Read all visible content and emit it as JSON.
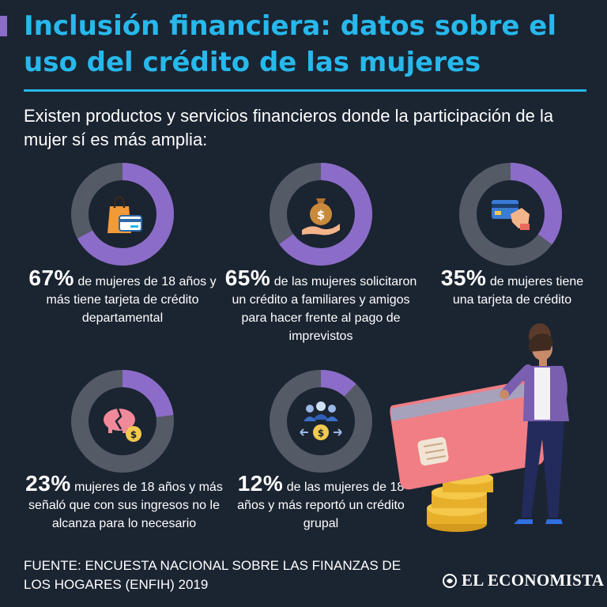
{
  "title": "Inclusión financiera: datos sobre el uso del crédito de las mujeres",
  "intro": "Existen productos y servicios financieros donde la participación de la mujer sí es más amplia:",
  "colors": {
    "accent": "#27b8ec",
    "purple": "#8c6cc9",
    "track": "#545a66",
    "background": "#1b2431"
  },
  "stats": [
    {
      "pct_label": "67%",
      "value": 0.67,
      "icon": "shopping-bag-card-icon",
      "text": "de mujeres de 18 años y más tiene tarjeta de crédito departamental"
    },
    {
      "pct_label": "65%",
      "value": 0.65,
      "icon": "money-bag-hand-icon",
      "text": "de las mujeres solicitaron un crédito a familiares y amigos para hacer frente al pago de imprevistos"
    },
    {
      "pct_label": "35%",
      "value": 0.35,
      "icon": "credit-card-hand-icon",
      "text": "de mujeres tiene una tarjeta de crédito"
    },
    {
      "pct_label": "23%",
      "value": 0.23,
      "icon": "broken-piggy-bank-icon",
      "text": "mujeres de 18 años y más señaló que con sus ingresos no le alcanza para lo necesario"
    },
    {
      "pct_label": "12%",
      "value": 0.12,
      "icon": "group-money-icon",
      "text": "de las mujeres de 18 años y más reportó un crédito grupal"
    }
  ],
  "source": "FUENTE:  ENCUESTA NACIONAL SOBRE LAS FINANZAS DE LOS HOGARES (ENFIH) 2019",
  "brand": "EL ECONOMISTA"
}
